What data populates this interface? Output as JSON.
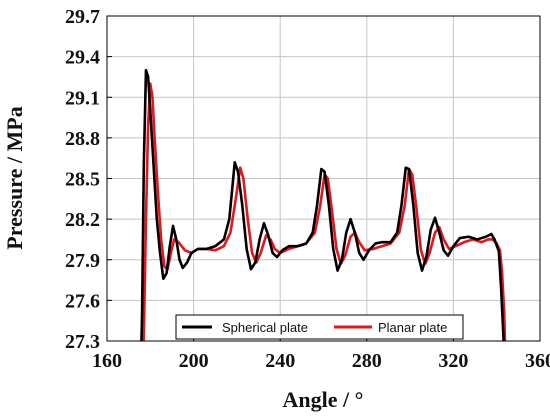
{
  "chart_data": {
    "type": "line",
    "title": "",
    "xlabel": "Angle  /  °",
    "ylabel": "Pressure  /  MPa",
    "xlim": [
      160,
      360
    ],
    "ylim": [
      27.3,
      29.7
    ],
    "xticks": [
      160,
      200,
      240,
      280,
      320,
      360
    ],
    "yticks": [
      27.3,
      27.6,
      27.9,
      28.2,
      28.5,
      28.8,
      29.1,
      29.4,
      29.7
    ],
    "xtick_labels": [
      "160",
      "200",
      "240",
      "280",
      "320",
      "360"
    ],
    "ytick_labels": [
      "27.3",
      "27.6",
      "27.9",
      "28.2",
      "28.5",
      "28.8",
      "29.1",
      "29.4",
      "29.7"
    ],
    "grid": true,
    "legend": {
      "placement": "bottom-center"
    },
    "series": [
      {
        "name": "Spherical plate",
        "color": "#000000",
        "points": [
          [
            175.5,
            27.0
          ],
          [
            176.2,
            27.5
          ],
          [
            177.0,
            28.6
          ],
          [
            178.0,
            29.3
          ],
          [
            179.0,
            29.25
          ],
          [
            180.0,
            29.0
          ],
          [
            181.5,
            28.6
          ],
          [
            183.0,
            28.2
          ],
          [
            184.5,
            27.95
          ],
          [
            186.0,
            27.76
          ],
          [
            187.5,
            27.8
          ],
          [
            189.0,
            28.0
          ],
          [
            190.5,
            28.15
          ],
          [
            192.0,
            28.05
          ],
          [
            193.5,
            27.9
          ],
          [
            195.0,
            27.84
          ],
          [
            197.0,
            27.88
          ],
          [
            199.0,
            27.95
          ],
          [
            202.0,
            27.98
          ],
          [
            206.0,
            27.98
          ],
          [
            210.0,
            28.0
          ],
          [
            214.0,
            28.05
          ],
          [
            216.5,
            28.2
          ],
          [
            219.0,
            28.62
          ],
          [
            220.5,
            28.55
          ],
          [
            222.5,
            28.3
          ],
          [
            224.5,
            27.98
          ],
          [
            226.5,
            27.83
          ],
          [
            228.5,
            27.88
          ],
          [
            230.5,
            28.05
          ],
          [
            232.5,
            28.17
          ],
          [
            234.5,
            28.08
          ],
          [
            236.5,
            27.95
          ],
          [
            238.5,
            27.92
          ],
          [
            241.0,
            27.97
          ],
          [
            244.0,
            28.0
          ],
          [
            248.0,
            28.0
          ],
          [
            252.0,
            28.02
          ],
          [
            255.0,
            28.1
          ],
          [
            257.0,
            28.3
          ],
          [
            259.0,
            28.57
          ],
          [
            260.5,
            28.55
          ],
          [
            262.5,
            28.3
          ],
          [
            264.5,
            27.98
          ],
          [
            266.5,
            27.82
          ],
          [
            268.5,
            27.9
          ],
          [
            270.5,
            28.1
          ],
          [
            272.5,
            28.2
          ],
          [
            274.5,
            28.1
          ],
          [
            276.5,
            27.95
          ],
          [
            278.5,
            27.9
          ],
          [
            281.0,
            27.97
          ],
          [
            284.0,
            28.02
          ],
          [
            287.0,
            28.03
          ],
          [
            291.0,
            28.03
          ],
          [
            294.0,
            28.1
          ],
          [
            296.0,
            28.3
          ],
          [
            298.0,
            28.58
          ],
          [
            299.5,
            28.57
          ],
          [
            301.5,
            28.3
          ],
          [
            303.5,
            27.95
          ],
          [
            305.5,
            27.82
          ],
          [
            307.5,
            27.92
          ],
          [
            309.5,
            28.12
          ],
          [
            311.5,
            28.21
          ],
          [
            313.5,
            28.1
          ],
          [
            315.5,
            27.97
          ],
          [
            317.5,
            27.93
          ],
          [
            320.0,
            28.0
          ],
          [
            323.0,
            28.06
          ],
          [
            327.0,
            28.07
          ],
          [
            331.0,
            28.05
          ],
          [
            335.0,
            28.07
          ],
          [
            337.5,
            28.09
          ],
          [
            339.0,
            28.05
          ],
          [
            341.0,
            27.96
          ],
          [
            342.0,
            27.7
          ],
          [
            343.2,
            27.3
          ],
          [
            344.0,
            27.0
          ]
        ]
      },
      {
        "name": "Planar plate",
        "color": "#e8141c",
        "points": [
          [
            176.5,
            27.0
          ],
          [
            177.2,
            27.5
          ],
          [
            178.0,
            28.2
          ],
          [
            179.0,
            28.9
          ],
          [
            180.0,
            29.2
          ],
          [
            181.0,
            29.1
          ],
          [
            182.0,
            28.8
          ],
          [
            183.5,
            28.4
          ],
          [
            185.0,
            28.05
          ],
          [
            186.5,
            27.85
          ],
          [
            188.0,
            27.83
          ],
          [
            189.5,
            27.95
          ],
          [
            191.0,
            28.05
          ],
          [
            193.0,
            28.03
          ],
          [
            196.0,
            27.97
          ],
          [
            199.0,
            27.95
          ],
          [
            202.0,
            27.98
          ],
          [
            206.0,
            27.98
          ],
          [
            210.0,
            27.97
          ],
          [
            214.0,
            28.0
          ],
          [
            217.0,
            28.1
          ],
          [
            219.5,
            28.35
          ],
          [
            221.5,
            28.58
          ],
          [
            223.0,
            28.5
          ],
          [
            225.0,
            28.2
          ],
          [
            227.0,
            27.95
          ],
          [
            229.0,
            27.88
          ],
          [
            231.0,
            27.95
          ],
          [
            233.5,
            28.08
          ],
          [
            235.5,
            28.05
          ],
          [
            237.5,
            27.98
          ],
          [
            240.0,
            27.95
          ],
          [
            244.0,
            27.98
          ],
          [
            248.0,
            28.0
          ],
          [
            252.0,
            28.02
          ],
          [
            256.0,
            28.1
          ],
          [
            258.5,
            28.3
          ],
          [
            260.5,
            28.53
          ],
          [
            262.0,
            28.5
          ],
          [
            264.0,
            28.25
          ],
          [
            266.0,
            27.98
          ],
          [
            268.0,
            27.87
          ],
          [
            270.0,
            27.93
          ],
          [
            272.5,
            28.07
          ],
          [
            274.5,
            28.1
          ],
          [
            276.5,
            28.03
          ],
          [
            279.0,
            27.97
          ],
          [
            283.0,
            27.98
          ],
          [
            287.0,
            28.0
          ],
          [
            291.0,
            28.02
          ],
          [
            295.0,
            28.1
          ],
          [
            297.5,
            28.3
          ],
          [
            299.5,
            28.57
          ],
          [
            301.0,
            28.53
          ],
          [
            303.0,
            28.27
          ],
          [
            305.0,
            27.97
          ],
          [
            307.0,
            27.87
          ],
          [
            309.0,
            27.95
          ],
          [
            311.5,
            28.1
          ],
          [
            313.5,
            28.14
          ],
          [
            315.5,
            28.05
          ],
          [
            318.0,
            27.98
          ],
          [
            321.0,
            28.0
          ],
          [
            325.0,
            28.03
          ],
          [
            329.0,
            28.05
          ],
          [
            333.0,
            28.03
          ],
          [
            336.0,
            28.05
          ],
          [
            338.0,
            28.05
          ],
          [
            340.0,
            28.02
          ],
          [
            341.5,
            27.97
          ],
          [
            342.5,
            27.8
          ],
          [
            343.5,
            27.5
          ],
          [
            344.3,
            27.0
          ]
        ]
      }
    ]
  }
}
